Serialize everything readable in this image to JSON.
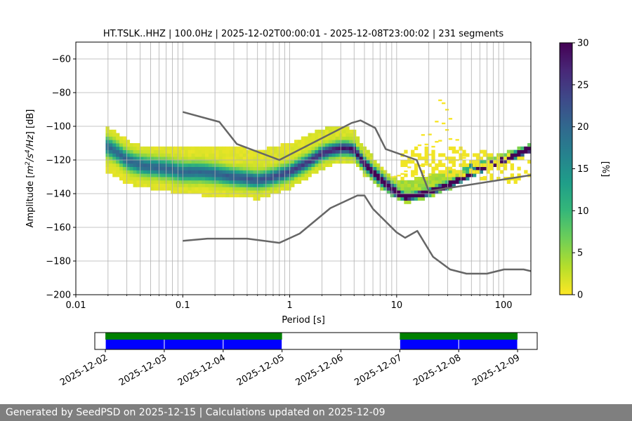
{
  "footer": {
    "generated_label": "Generated by SeedPSD on",
    "generated_date": "2025-12-15",
    "separator": "|",
    "updated_label": "Calculations updated on",
    "updated_date": "2025-12-09"
  },
  "chart_data": [
    {
      "type": "heatmap",
      "title": "HT.TSLK..HHZ | 100.0Hz | 2025-12-02T00:00:01 - 2025-12-08T23:00:02 | 231 segments",
      "xlabel": "Period [s]",
      "ylabel_parts": [
        "Amplitude [",
        "m",
        "2",
        "/",
        "s",
        "4",
        "/",
        "Hz",
        "] [dB]"
      ],
      "xscale": "log",
      "xlim": [
        0.01,
        180
      ],
      "ylim": [
        -200,
        -50
      ],
      "grid": true,
      "xticks": [
        {
          "value": 0.01,
          "label": "0.01"
        },
        {
          "value": 0.1,
          "label": "0.1"
        },
        {
          "value": 1,
          "label": "1"
        },
        {
          "value": 10,
          "label": "10"
        },
        {
          "value": 100,
          "label": "100"
        }
      ],
      "yticks": [
        {
          "value": -60,
          "label": "−60"
        },
        {
          "value": -80,
          "label": "−80"
        },
        {
          "value": -100,
          "label": "−100"
        },
        {
          "value": -120,
          "label": "−120"
        },
        {
          "value": -140,
          "label": "−140"
        },
        {
          "value": -160,
          "label": "−160"
        },
        {
          "value": -180,
          "label": "−180"
        },
        {
          "value": -200,
          "label": "−200"
        }
      ],
      "colorbar": {
        "label": "[%]",
        "range": [
          0,
          30
        ],
        "colors": [
          "#fde725",
          "#b5de2b",
          "#6ece58",
          "#35b779",
          "#1f9e89",
          "#26828e",
          "#31688e",
          "#3e4989",
          "#482878",
          "#440154"
        ],
        "ticks": [
          {
            "value": 0,
            "label": "0"
          },
          {
            "value": 5,
            "label": "5"
          },
          {
            "value": 10,
            "label": "10"
          },
          {
            "value": 15,
            "label": "15"
          },
          {
            "value": 20,
            "label": "20"
          },
          {
            "value": 25,
            "label": "25"
          },
          {
            "value": 30,
            "label": "30"
          }
        ]
      },
      "mode_curve": [
        [
          0.02,
          -112
        ],
        [
          0.025,
          -116
        ],
        [
          0.03,
          -120
        ],
        [
          0.04,
          -123
        ],
        [
          0.05,
          -124
        ],
        [
          0.07,
          -125
        ],
        [
          0.1,
          -127
        ],
        [
          0.15,
          -127
        ],
        [
          0.2,
          -128
        ],
        [
          0.3,
          -130
        ],
        [
          0.4,
          -131
        ],
        [
          0.5,
          -132
        ],
        [
          0.7,
          -130
        ],
        [
          1,
          -127
        ],
        [
          1.5,
          -121
        ],
        [
          2,
          -116
        ],
        [
          2.5,
          -114
        ],
        [
          3,
          -113
        ],
        [
          3.5,
          -113
        ],
        [
          4,
          -114
        ],
        [
          5,
          -122
        ],
        [
          6,
          -127
        ],
        [
          7,
          -131
        ],
        [
          8,
          -134
        ],
        [
          9,
          -137
        ],
        [
          10,
          -139
        ],
        [
          12,
          -142
        ],
        [
          15,
          -141
        ],
        [
          20,
          -139
        ],
        [
          30,
          -135
        ],
        [
          50,
          -128
        ],
        [
          80,
          -122
        ],
        [
          120,
          -118
        ],
        [
          180,
          -113
        ]
      ],
      "spread_low": [
        [
          0.02,
          -15
        ],
        [
          0.05,
          -13
        ],
        [
          0.15,
          -14
        ],
        [
          0.35,
          -12
        ],
        [
          1,
          -10
        ],
        [
          3,
          -9
        ],
        [
          5,
          -7
        ],
        [
          10,
          -4
        ],
        [
          20,
          -3
        ],
        [
          180,
          -2
        ]
      ],
      "spread_high": [
        [
          0.02,
          12
        ],
        [
          0.05,
          12
        ],
        [
          0.15,
          16
        ],
        [
          0.3,
          18
        ],
        [
          0.7,
          18
        ],
        [
          1.5,
          16
        ],
        [
          3,
          13
        ],
        [
          5,
          10
        ],
        [
          8,
          8
        ],
        [
          10,
          8
        ],
        [
          13,
          10
        ],
        [
          20,
          10
        ],
        [
          40,
          6
        ],
        [
          100,
          4
        ],
        [
          180,
          3
        ]
      ],
      "background_mode": [
        [
          10,
          -124
        ],
        [
          20,
          -120
        ],
        [
          40,
          -122
        ],
        [
          100,
          -125
        ],
        [
          180,
          -127
        ]
      ],
      "hump": {
        "center": 25,
        "peak_db": -85,
        "base_db": -131
      },
      "high_noise_model": [
        [
          0.1,
          -91.5
        ],
        [
          0.22,
          -97.4
        ],
        [
          0.32,
          -110.5
        ],
        [
          0.8,
          -120
        ],
        [
          3.8,
          -98
        ],
        [
          4.6,
          -96.5
        ],
        [
          6.3,
          -101
        ],
        [
          7.9,
          -113.5
        ],
        [
          15.4,
          -120
        ],
        [
          20,
          -138.5
        ],
        [
          180,
          -129
        ]
      ],
      "low_noise_model": [
        [
          0.1,
          -168
        ],
        [
          0.17,
          -166.7
        ],
        [
          0.4,
          -166.7
        ],
        [
          0.8,
          -169.2
        ],
        [
          1.24,
          -163.7
        ],
        [
          2.4,
          -148.6
        ],
        [
          4.3,
          -141.1
        ],
        [
          5,
          -141.1
        ],
        [
          6,
          -149
        ],
        [
          10,
          -163
        ],
        [
          12,
          -166.2
        ],
        [
          15.6,
          -162.1
        ],
        [
          21.9,
          -177.5
        ],
        [
          31.6,
          -185
        ],
        [
          45,
          -187.5
        ],
        [
          70,
          -187.5
        ],
        [
          101,
          -185
        ],
        [
          154,
          -185
        ],
        [
          180,
          -186
        ]
      ]
    },
    {
      "type": "coverage",
      "x_range": [
        "2025-12-02",
        "2025-12-09T08:00"
      ],
      "tick_labels": [
        "2025-12-02",
        "2025-12-03",
        "2025-12-04",
        "2025-12-05",
        "2025-12-06",
        "2025-12-07",
        "2025-12-08",
        "2025-12-09"
      ],
      "tick_days": [
        0,
        1,
        2,
        3,
        4,
        5,
        6,
        7
      ],
      "coverage_color": "#008000",
      "segment_color": "#0000ff",
      "coverage": [
        [
          0,
          3
        ],
        [
          5,
          7
        ]
      ],
      "segments": [
        [
          0,
          1
        ],
        [
          1,
          2
        ],
        [
          2,
          3
        ],
        [
          5,
          6
        ],
        [
          6,
          7
        ]
      ]
    }
  ]
}
